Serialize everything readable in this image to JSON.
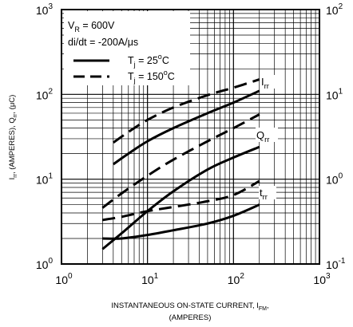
{
  "chart_data": {
    "type": "line",
    "x_scale": "log",
    "y_scale": "log",
    "xlim": [
      1,
      1000
    ],
    "ylim_left": [
      1,
      1000
    ],
    "ylim_right": [
      0.1,
      100
    ],
    "grid": true,
    "xlabel": {
      "main": "INSTANTANEOUS ON-STATE CURRENT, I",
      "sub": "FM",
      "suffix": ",",
      "line2": "(AMPERES)"
    },
    "ylabel": {
      "p1": "I",
      "s1": "rr",
      "p2": ", (AMPERES), Q",
      "s2": "rr",
      "p3": ", (μC)"
    },
    "x_ticks": [
      {
        "base": "10",
        "exp": "0"
      },
      {
        "base": "10",
        "exp": "1"
      },
      {
        "base": "10",
        "exp": "2"
      },
      {
        "base": "10",
        "exp": "3"
      }
    ],
    "y_ticks_left": [
      {
        "base": "10",
        "exp": "0"
      },
      {
        "base": "10",
        "exp": "1"
      },
      {
        "base": "10",
        "exp": "2"
      },
      {
        "base": "10",
        "exp": "3"
      }
    ],
    "y_ticks_right": [
      {
        "base": "10",
        "exp": "-1"
      },
      {
        "base": "10",
        "exp": "0"
      },
      {
        "base": "10",
        "exp": "1"
      },
      {
        "base": "10",
        "exp": "2"
      }
    ],
    "conditions": [
      {
        "p1": "V",
        "s1": "R",
        "p2": " = 600V"
      },
      {
        "p1": "di/dt = -200A/μs",
        "s1": "",
        "p2": ""
      }
    ],
    "legend": [
      {
        "style": "solid",
        "p1": "T",
        "s1": "j",
        "p2": " = 25",
        "sup": "o",
        "p3": "C"
      },
      {
        "style": "dashed",
        "p1": "T",
        "s1": "j",
        "p2": " = 150",
        "sup": "o",
        "p3": "C"
      }
    ],
    "curve_labels": [
      {
        "main": "I",
        "sub": "rr"
      },
      {
        "main": "Q",
        "sub": "rr"
      },
      {
        "main": "t",
        "sub": "rr"
      }
    ],
    "series": [
      {
        "quantity": "Irr",
        "tj": "25oC",
        "style": "solid",
        "x": [
          4,
          6,
          10,
          20,
          50,
          100,
          200
        ],
        "y": [
          15,
          20,
          28,
          40,
          60,
          80,
          110
        ]
      },
      {
        "quantity": "Irr",
        "tj": "150oC",
        "style": "dashed",
        "x": [
          4,
          6,
          10,
          20,
          50,
          100,
          200
        ],
        "y": [
          27,
          36,
          50,
          70,
          98,
          120,
          150
        ]
      },
      {
        "quantity": "Qrr",
        "tj": "25oC",
        "style": "solid",
        "x": [
          3,
          5,
          10,
          20,
          50,
          100,
          200
        ],
        "y": [
          1.5,
          2.3,
          4.2,
          7.2,
          13,
          18,
          24
        ]
      },
      {
        "quantity": "Qrr",
        "tj": "150oC",
        "style": "dashed",
        "x": [
          3,
          5,
          10,
          20,
          50,
          100,
          200
        ],
        "y": [
          4.6,
          6.8,
          11,
          17,
          28,
          40,
          58
        ]
      },
      {
        "quantity": "trr",
        "tj": "25oC",
        "style": "solid",
        "x": [
          3,
          5,
          10,
          20,
          50,
          100,
          200
        ],
        "y": [
          0.2,
          0.2,
          0.22,
          0.25,
          0.3,
          0.37,
          0.5
        ]
      },
      {
        "quantity": "trr",
        "tj": "150oC",
        "style": "dashed",
        "x": [
          3,
          5,
          10,
          20,
          50,
          100,
          200
        ],
        "y": [
          0.33,
          0.36,
          0.42,
          0.47,
          0.55,
          0.65,
          0.95
        ]
      }
    ]
  }
}
